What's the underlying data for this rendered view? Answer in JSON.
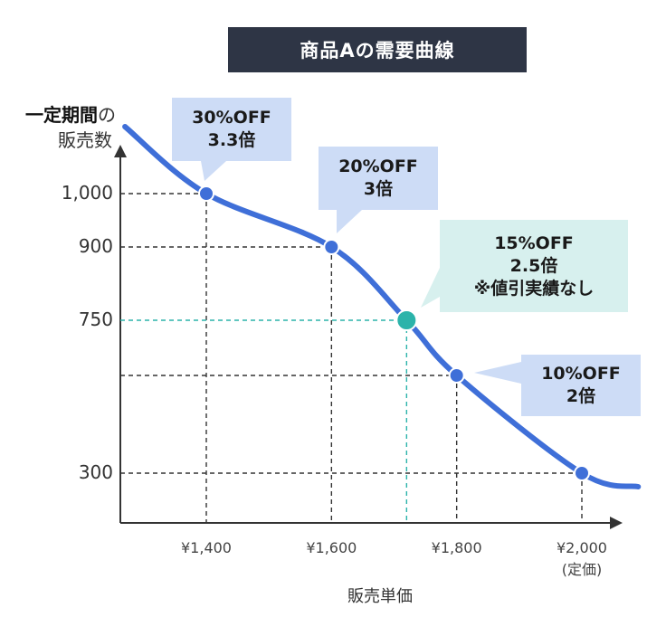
{
  "chart_data": {
    "type": "line",
    "title": "商品Aの需要曲線",
    "ylabel_strong": "一定期間",
    "ylabel_suffix": "の",
    "ylabel_line2": "販売数",
    "xlabel": "販売単価",
    "x_ticks": [
      {
        "value": 1400,
        "label": "¥1,400",
        "sub": ""
      },
      {
        "value": 1600,
        "label": "¥1,600",
        "sub": ""
      },
      {
        "value": 1800,
        "label": "¥1,800",
        "sub": ""
      },
      {
        "value": 2000,
        "label": "¥2,000",
        "sub": "(定価)"
      }
    ],
    "y_ticks": [
      {
        "value": 1000,
        "label": "1,000"
      },
      {
        "value": 900,
        "label": "900"
      },
      {
        "value": 750,
        "label": "750"
      },
      {
        "value": 300,
        "label": "300"
      }
    ],
    "points": [
      {
        "x": 1400,
        "y": 1000,
        "lines": [
          "30%OFF",
          "3.3倍"
        ],
        "estimated": false
      },
      {
        "x": 1600,
        "y": 900,
        "lines": [
          "20%OFF",
          "3倍"
        ],
        "estimated": false
      },
      {
        "x": 1720,
        "y": 750,
        "lines": [
          "15%OFF",
          "2.5倍",
          "※値引実績なし"
        ],
        "estimated": true
      },
      {
        "x": 1800,
        "y": 600,
        "lines": [
          "10%OFF",
          "2倍"
        ],
        "estimated": false
      },
      {
        "x": 2000,
        "y": 300,
        "lines": [],
        "estimated": false
      }
    ],
    "curve": [
      {
        "x": 1270,
        "y": 1150
      },
      {
        "x": 1400,
        "y": 1000
      },
      {
        "x": 1600,
        "y": 900
      },
      {
        "x": 1720,
        "y": 750
      },
      {
        "x": 1800,
        "y": 600
      },
      {
        "x": 2000,
        "y": 300
      },
      {
        "x": 2090,
        "y": 250
      }
    ],
    "colors": {
      "line": "#3f6fd8",
      "point": "#3f6fd8",
      "estimated_point": "#2bb3aa",
      "callout_fill": "#cddcf6",
      "estimated_callout_fill": "#d7f0ee",
      "guide": "#333333",
      "estimated_guide": "#2bb3aa",
      "axis": "#333333",
      "title_box": "#2e3545"
    }
  }
}
